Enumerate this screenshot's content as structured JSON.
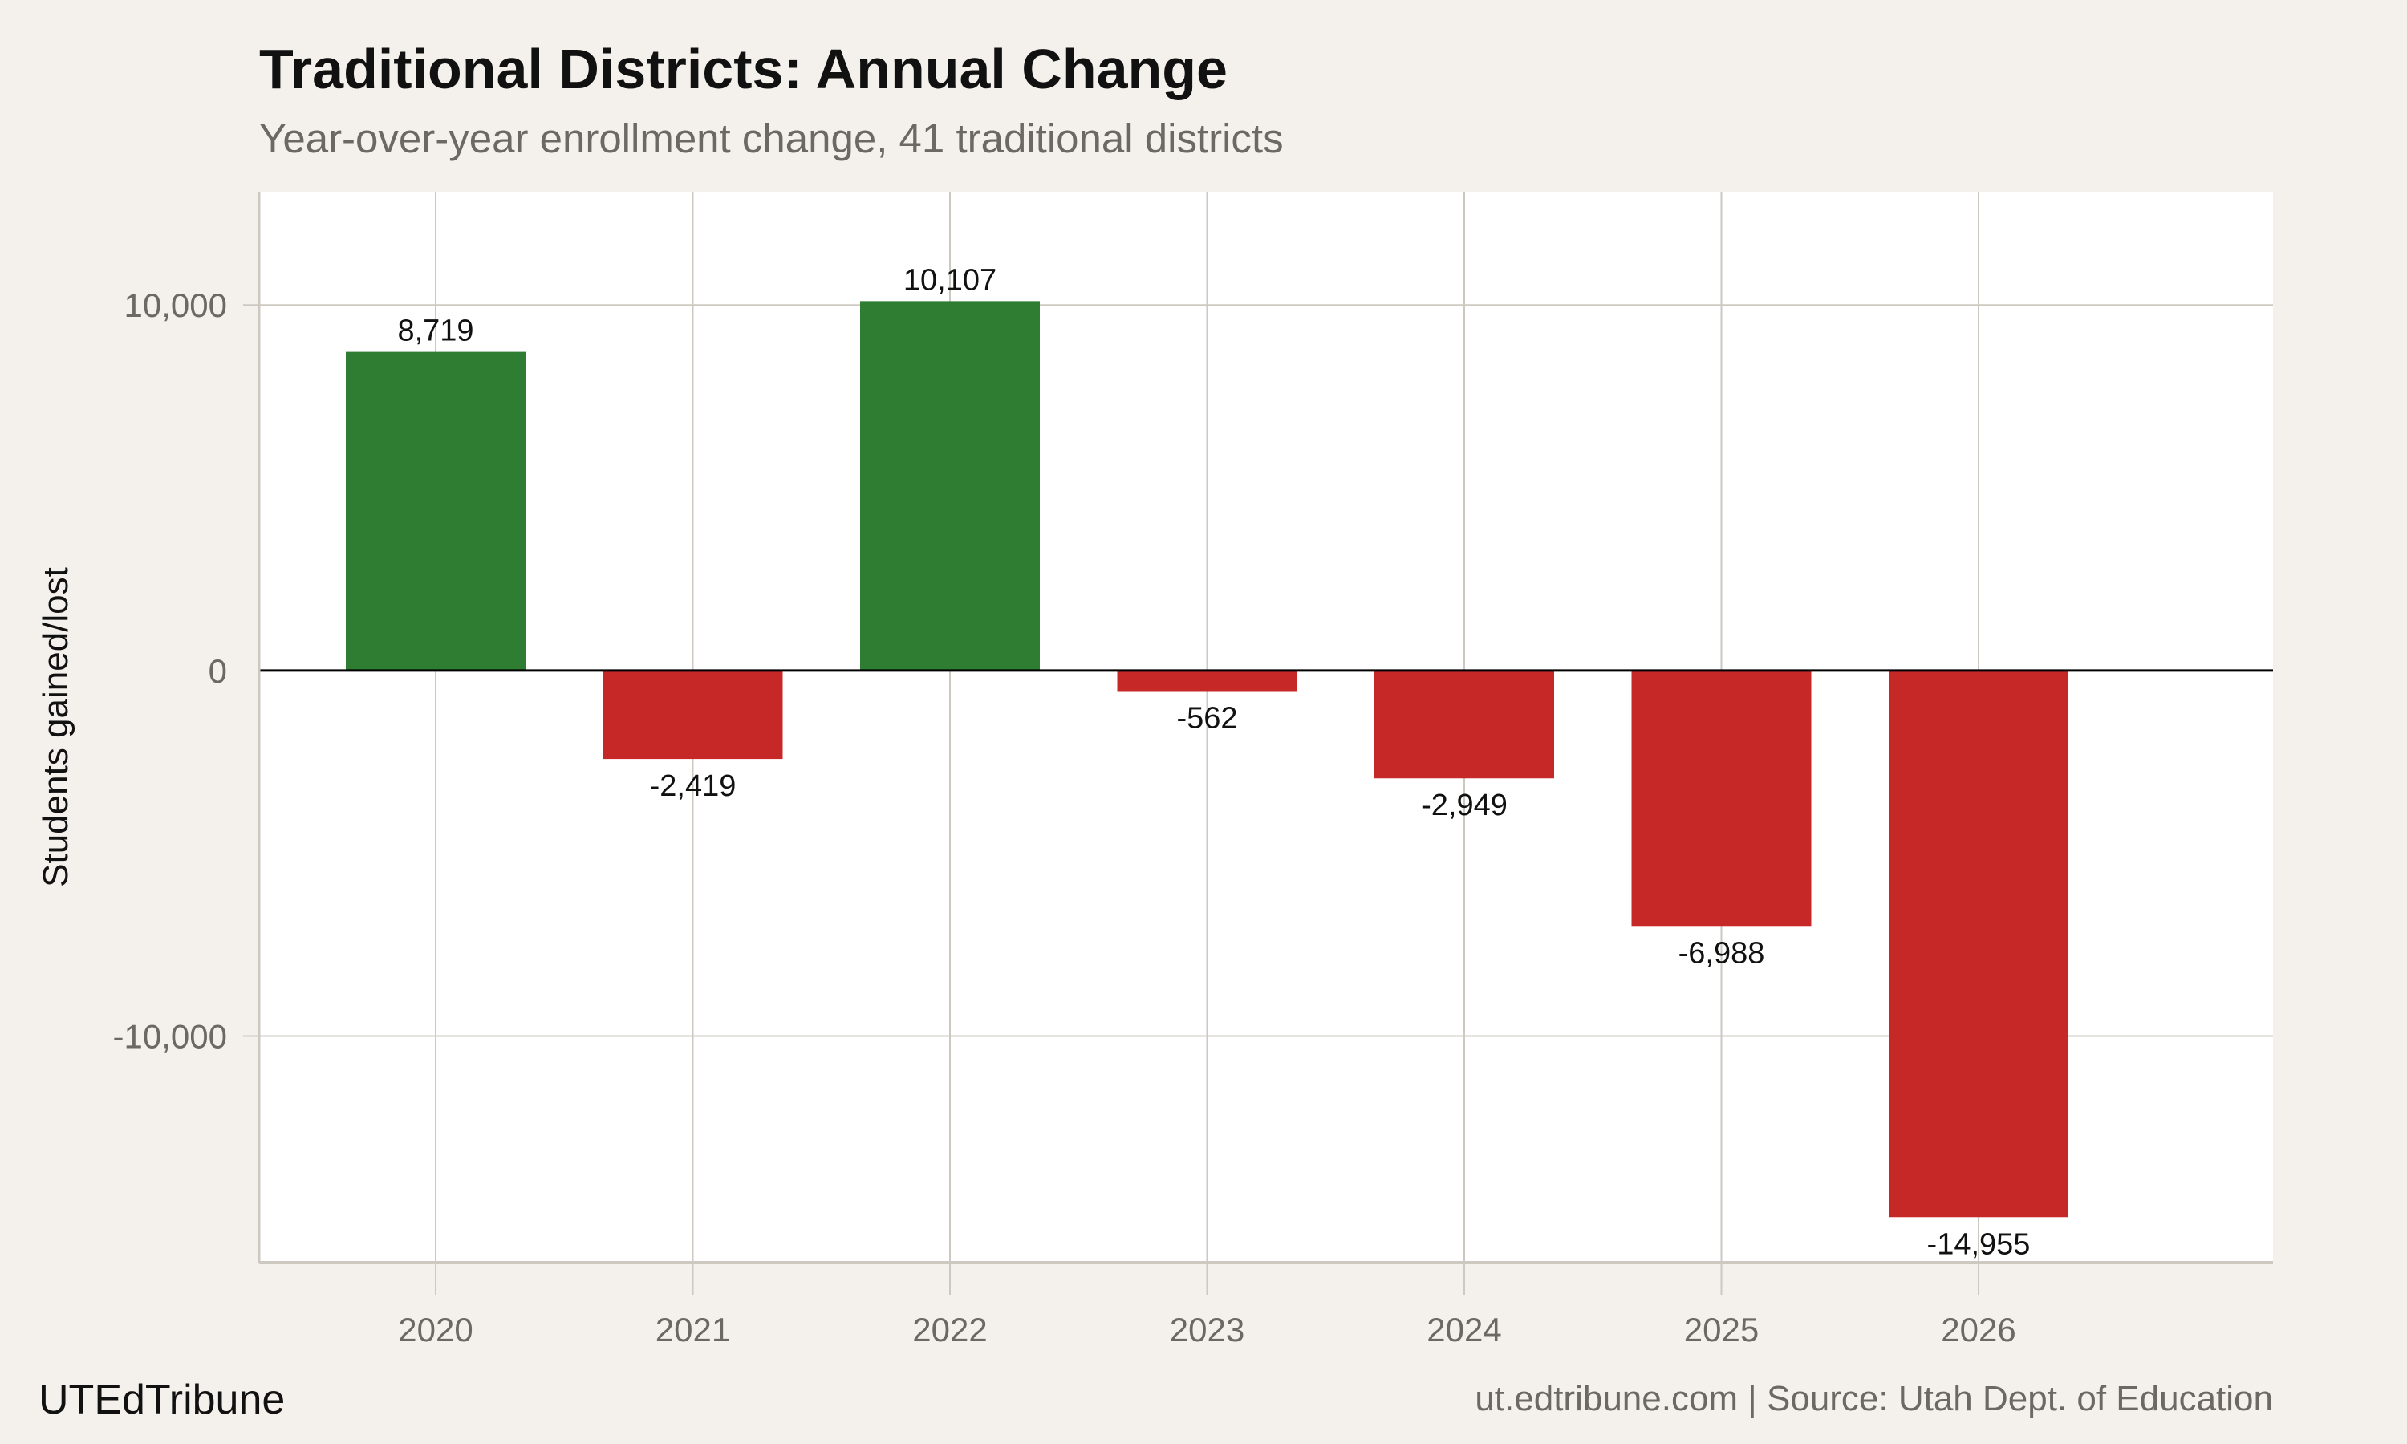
{
  "header": {
    "title": "Traditional Districts: Annual Change",
    "subtitle": "Year-over-year enrollment change, 41 traditional districts"
  },
  "footer": {
    "brand": "UTEdTribune",
    "source": "ut.edtribune.com | Source: Utah Dept. of Education"
  },
  "chart_data": {
    "type": "bar",
    "title": "Traditional Districts: Annual Change",
    "subtitle": "Year-over-year enrollment change, 41 traditional districts",
    "xlabel": "",
    "ylabel": "Students gained/lost",
    "categories": [
      "2020",
      "2021",
      "2022",
      "2023",
      "2024",
      "2025",
      "2026"
    ],
    "values": [
      8719,
      -2419,
      10107,
      -562,
      -2949,
      -6988,
      -14955
    ],
    "data_labels": [
      "8,719",
      "-2,419",
      "10,107",
      "-562",
      "-2,949",
      "-6,988",
      "-14,955"
    ],
    "ylim": [
      -16200,
      13100
    ],
    "yticks": [
      -10000,
      0,
      10000
    ],
    "ytick_labels": [
      "-10,000",
      "0",
      "10,000"
    ],
    "grid": true,
    "legend": "none",
    "colors": {
      "positive": "#2e7d32",
      "negative": "#c62828",
      "zero_line": "#000000",
      "grid": "#cdc8c0",
      "panel": "#ffffff",
      "background": "#f4f1ec"
    }
  }
}
